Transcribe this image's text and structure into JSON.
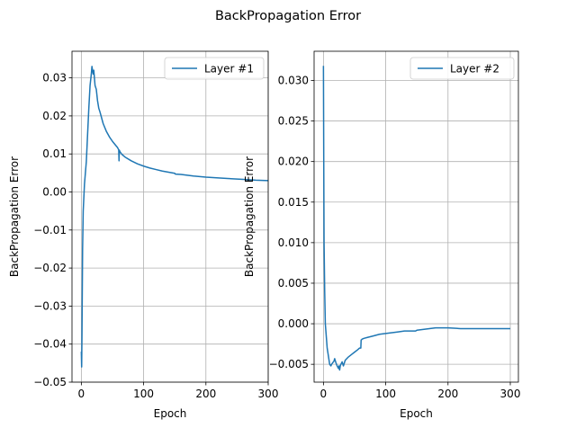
{
  "figure": {
    "title": "BackPropagation Error"
  },
  "colors": {
    "series": "#1f77b4",
    "grid": "#b0b0b0",
    "axes": "#000000"
  },
  "chart_data": [
    {
      "type": "line",
      "title": "",
      "xlabel": "Epoch",
      "ylabel": "BackPropagation Error",
      "xlim": [
        -15,
        300
      ],
      "ylim": [
        -0.05,
        0.037
      ],
      "xticks": [
        0,
        100,
        200,
        300
      ],
      "xtick_labels": [
        "0",
        "100",
        "200",
        "300"
      ],
      "yticks": [
        -0.05,
        -0.04,
        -0.03,
        -0.02,
        -0.01,
        0.0,
        0.01,
        0.02,
        0.03
      ],
      "ytick_labels": [
        "−0.05",
        "−0.04",
        "−0.03",
        "−0.02",
        "−0.01",
        "0.00",
        "0.01",
        "0.02",
        "0.03"
      ],
      "grid": true,
      "legend_position": "top-right",
      "series": [
        {
          "name": "Layer #1",
          "x": [
            0,
            0.5,
            1,
            2,
            3,
            5,
            8,
            10,
            12,
            14,
            16,
            17,
            18,
            19,
            20,
            22,
            24,
            26,
            28,
            30,
            35,
            40,
            45,
            50,
            55,
            58,
            60,
            60.5,
            61,
            62,
            65,
            70,
            80,
            90,
            100,
            110,
            120,
            130,
            140,
            150,
            151,
            160,
            180,
            200,
            220,
            240,
            260,
            280,
            300
          ],
          "y": [
            -0.042,
            -0.046,
            -0.038,
            -0.015,
            -0.005,
            0.002,
            0.008,
            0.015,
            0.022,
            0.028,
            0.031,
            0.033,
            0.032,
            0.031,
            0.032,
            0.028,
            0.027,
            0.024,
            0.022,
            0.021,
            0.018,
            0.016,
            0.0145,
            0.0133,
            0.0123,
            0.0117,
            0.0111,
            0.0082,
            0.011,
            0.0106,
            0.0099,
            0.0092,
            0.0082,
            0.0074,
            0.0068,
            0.0063,
            0.0059,
            0.0055,
            0.0052,
            0.0049,
            0.0047,
            0.0046,
            0.0042,
            0.0039,
            0.0037,
            0.0035,
            0.0033,
            0.0031,
            0.003
          ]
        }
      ]
    },
    {
      "type": "line",
      "title": "",
      "xlabel": "Epoch",
      "ylabel": "BackPropagation Error",
      "xlim": [
        -15,
        313
      ],
      "ylim": [
        -0.0072,
        0.0336
      ],
      "xticks": [
        0,
        100,
        200,
        300
      ],
      "xtick_labels": [
        "0",
        "100",
        "200",
        "300"
      ],
      "yticks": [
        -0.005,
        0.0,
        0.005,
        0.01,
        0.015,
        0.02,
        0.025,
        0.03
      ],
      "ytick_labels": [
        "−0.005",
        "0.000",
        "0.005",
        "0.010",
        "0.015",
        "0.020",
        "0.025",
        "0.030"
      ],
      "grid": true,
      "legend_position": "top-right",
      "series": [
        {
          "name": "Layer #2",
          "x": [
            0,
            0.5,
            1,
            2,
            3,
            4,
            5,
            6,
            8,
            10,
            12,
            13,
            15,
            17,
            18,
            20,
            22,
            24,
            25,
            26,
            27,
            28,
            30,
            32,
            35,
            40,
            45,
            50,
            55,
            58,
            60,
            60.5,
            61,
            62,
            65,
            70,
            80,
            90,
            100,
            110,
            120,
            130,
            140,
            148,
            150,
            160,
            170,
            180,
            190,
            200,
            220,
            240,
            260,
            280,
            300
          ],
          "y": [
            0.0318,
            0.02,
            0.01,
            0.004,
            0.0,
            -0.001,
            -0.002,
            -0.003,
            -0.004,
            -0.005,
            -0.0052,
            -0.005,
            -0.0048,
            -0.0046,
            -0.0043,
            -0.0048,
            -0.0052,
            -0.0055,
            -0.0052,
            -0.0057,
            -0.0052,
            -0.005,
            -0.0047,
            -0.0052,
            -0.0045,
            -0.0041,
            -0.0038,
            -0.0035,
            -0.0032,
            -0.003,
            -0.003,
            -0.002,
            -0.002,
            -0.0019,
            -0.0018,
            -0.0017,
            -0.0015,
            -0.0013,
            -0.0012,
            -0.0011,
            -0.001,
            -0.0009,
            -0.0009,
            -0.0009,
            -0.0008,
            -0.0007,
            -0.0006,
            -0.0005,
            -0.0005,
            -0.0005,
            -0.0006,
            -0.0006,
            -0.0006,
            -0.0006,
            -0.0006
          ]
        }
      ]
    }
  ]
}
